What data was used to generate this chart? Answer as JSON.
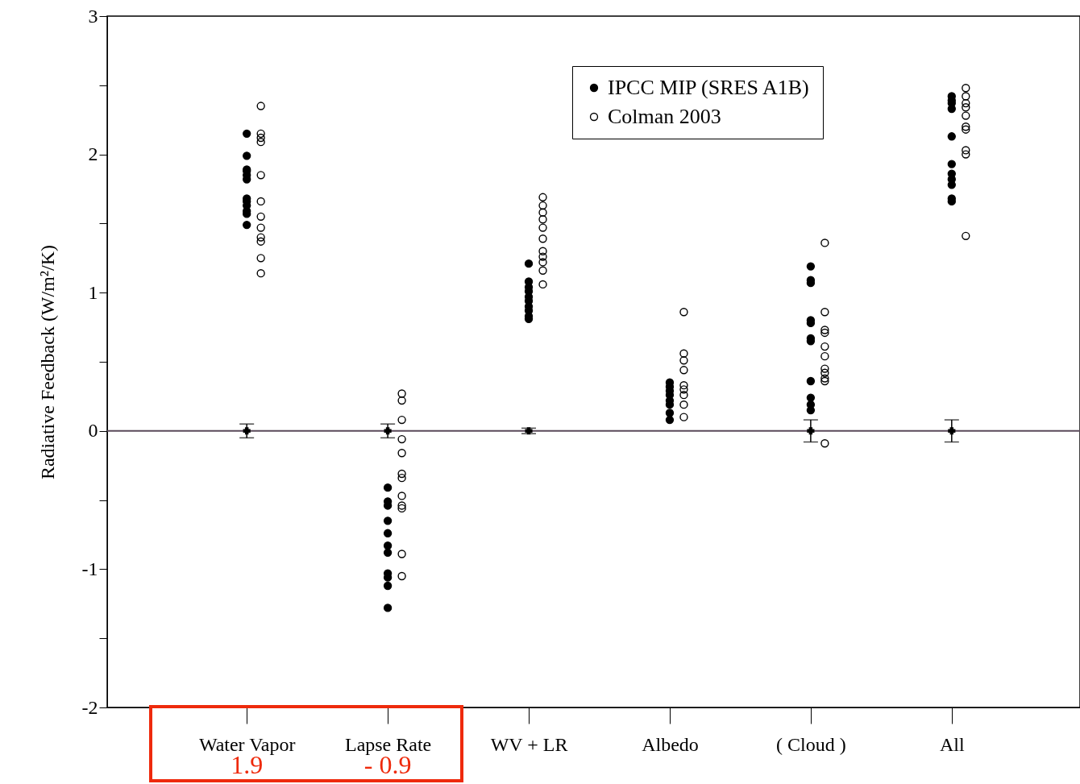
{
  "chart_data": {
    "type": "scatter",
    "ylabel": "Radiative Feedback (W/m²/K)",
    "categories": [
      "Water Vapor",
      "Lapse Rate",
      "WV + LR",
      "Albedo",
      "( Cloud )",
      "All"
    ],
    "ylim": [
      -2,
      3
    ],
    "yticks": [
      -2,
      {
        "value": -1.5,
        "label": null
      },
      -1,
      {
        "value": -0.5,
        "label": null
      },
      0,
      {
        "value": 0.5,
        "label": null
      },
      1,
      {
        "value": 1.5,
        "label": null
      },
      2,
      {
        "value": 2.5,
        "label": null
      },
      3
    ],
    "grid": false,
    "legend": "top right",
    "marker": "circle",
    "ref_lines": [
      {
        "axis": "y",
        "value": 0,
        "color": "#5a4a5a"
      }
    ],
    "annotations": [
      "1.9",
      "- 0.9"
    ],
    "series": [
      {
        "name": "IPCC MIP (SRES A1B)",
        "color": "#000000",
        "x": [
          "Water Vapor",
          "Water Vapor",
          "Water Vapor",
          "Water Vapor",
          "Water Vapor",
          "Water Vapor",
          "Water Vapor",
          "Water Vapor",
          "Water Vapor",
          "Water Vapor",
          "Water Vapor",
          "Water Vapor",
          "Lapse Rate",
          "Lapse Rate",
          "Lapse Rate",
          "Lapse Rate",
          "Lapse Rate",
          "Lapse Rate",
          "Lapse Rate",
          "Lapse Rate",
          "Lapse Rate",
          "Lapse Rate",
          "Lapse Rate",
          "WV + LR",
          "WV + LR",
          "WV + LR",
          "WV + LR",
          "WV + LR",
          "WV + LR",
          "WV + LR",
          "WV + LR",
          "WV + LR",
          "WV + LR",
          "Albedo",
          "Albedo",
          "Albedo",
          "Albedo",
          "Albedo",
          "Albedo",
          "Albedo",
          "Albedo",
          "( Cloud )",
          "( Cloud )",
          "( Cloud )",
          "( Cloud )",
          "( Cloud )",
          "( Cloud )",
          "( Cloud )",
          "( Cloud )",
          "( Cloud )",
          "( Cloud )",
          "( Cloud )",
          "All",
          "All",
          "All",
          "All",
          "All",
          "All",
          "All",
          "All",
          "All",
          "All",
          "All"
        ],
        "values": [
          2.15,
          1.99,
          1.89,
          1.88,
          1.85,
          1.82,
          1.68,
          1.66,
          1.63,
          1.59,
          1.57,
          1.49,
          -0.41,
          -0.51,
          -0.54,
          -0.65,
          -0.74,
          -0.83,
          -0.88,
          -1.03,
          -1.06,
          -1.12,
          -1.28,
          1.21,
          1.08,
          1.04,
          1.01,
          0.97,
          0.94,
          0.9,
          0.87,
          0.83,
          0.81,
          0.35,
          0.32,
          0.29,
          0.26,
          0.22,
          0.19,
          0.13,
          0.08,
          1.19,
          1.09,
          1.07,
          0.8,
          0.78,
          0.67,
          0.65,
          0.36,
          0.24,
          0.19,
          0.15,
          2.42,
          2.39,
          2.37,
          2.33,
          2.13,
          1.93,
          1.86,
          1.82,
          1.78,
          1.68,
          1.66
        ]
      },
      {
        "name": "Colman 2003",
        "color": "#000000",
        "x": [
          "Water Vapor",
          "Water Vapor",
          "Water Vapor",
          "Water Vapor",
          "Water Vapor",
          "Water Vapor",
          "Water Vapor",
          "Water Vapor",
          "Water Vapor",
          "Water Vapor",
          "Water Vapor",
          "Water Vapor",
          "Lapse Rate",
          "Lapse Rate",
          "Lapse Rate",
          "Lapse Rate",
          "Lapse Rate",
          "Lapse Rate",
          "Lapse Rate",
          "Lapse Rate",
          "Lapse Rate",
          "Lapse Rate",
          "Lapse Rate",
          "Lapse Rate",
          "WV + LR",
          "WV + LR",
          "WV + LR",
          "WV + LR",
          "WV + LR",
          "WV + LR",
          "WV + LR",
          "WV + LR",
          "WV + LR",
          "WV + LR",
          "WV + LR",
          "Albedo",
          "Albedo",
          "Albedo",
          "Albedo",
          "Albedo",
          "Albedo",
          "Albedo",
          "Albedo",
          "Albedo",
          "( Cloud )",
          "( Cloud )",
          "( Cloud )",
          "( Cloud )",
          "( Cloud )",
          "( Cloud )",
          "( Cloud )",
          "( Cloud )",
          "( Cloud )",
          "( Cloud )",
          "( Cloud )",
          "All",
          "All",
          "All",
          "All",
          "All",
          "All",
          "All",
          "All",
          "All",
          "All"
        ],
        "values": [
          2.35,
          2.15,
          2.12,
          2.09,
          1.85,
          1.66,
          1.55,
          1.47,
          1.4,
          1.37,
          1.25,
          1.14,
          0.27,
          0.22,
          0.08,
          -0.06,
          -0.16,
          -0.31,
          -0.34,
          -0.47,
          -0.54,
          -0.56,
          -0.89,
          -1.05,
          1.69,
          1.63,
          1.58,
          1.53,
          1.47,
          1.39,
          1.3,
          1.26,
          1.22,
          1.16,
          1.06,
          0.86,
          0.56,
          0.51,
          0.44,
          0.33,
          0.3,
          0.26,
          0.19,
          0.1,
          1.36,
          0.86,
          0.73,
          0.71,
          0.61,
          0.54,
          0.45,
          0.42,
          0.38,
          0.36,
          -0.09,
          2.48,
          2.42,
          2.37,
          2.34,
          2.28,
          2.2,
          2.18,
          2.03,
          2,
          1.41
        ]
      },
      {
        "color": "#000000",
        "marker": "cross",
        "x": [
          "Water Vapor",
          "Lapse Rate",
          "WV + LR",
          "Albedo",
          "( Cloud )",
          "All"
        ],
        "values": [
          0,
          0,
          0,
          null,
          0,
          0
        ],
        "errors": [
          0.05,
          0.05,
          0.02,
          null,
          0.08,
          0.08
        ]
      }
    ]
  }
}
